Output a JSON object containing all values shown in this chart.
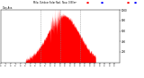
{
  "title_line1": "Milw. Outdoor Solar Rad.  Now: 0 W/m²",
  "title_line2": "Day Ave.",
  "bar_color": "#ff0000",
  "avg_line_color": "#0000ff",
  "background_color": "#ffffff",
  "plot_bg_color": "#ffffff",
  "grid_color": "#888888",
  "num_points": 1440,
  "peak_minute": 760,
  "peak_value": 900,
  "ylim": [
    0,
    1000
  ],
  "xlim": [
    0,
    1440
  ],
  "ytick_values": [
    200,
    400,
    600,
    800,
    1000
  ],
  "vgrid_minutes": [
    480,
    720,
    960
  ],
  "sigma": 190,
  "start_minute": 300,
  "end_minute": 1150
}
